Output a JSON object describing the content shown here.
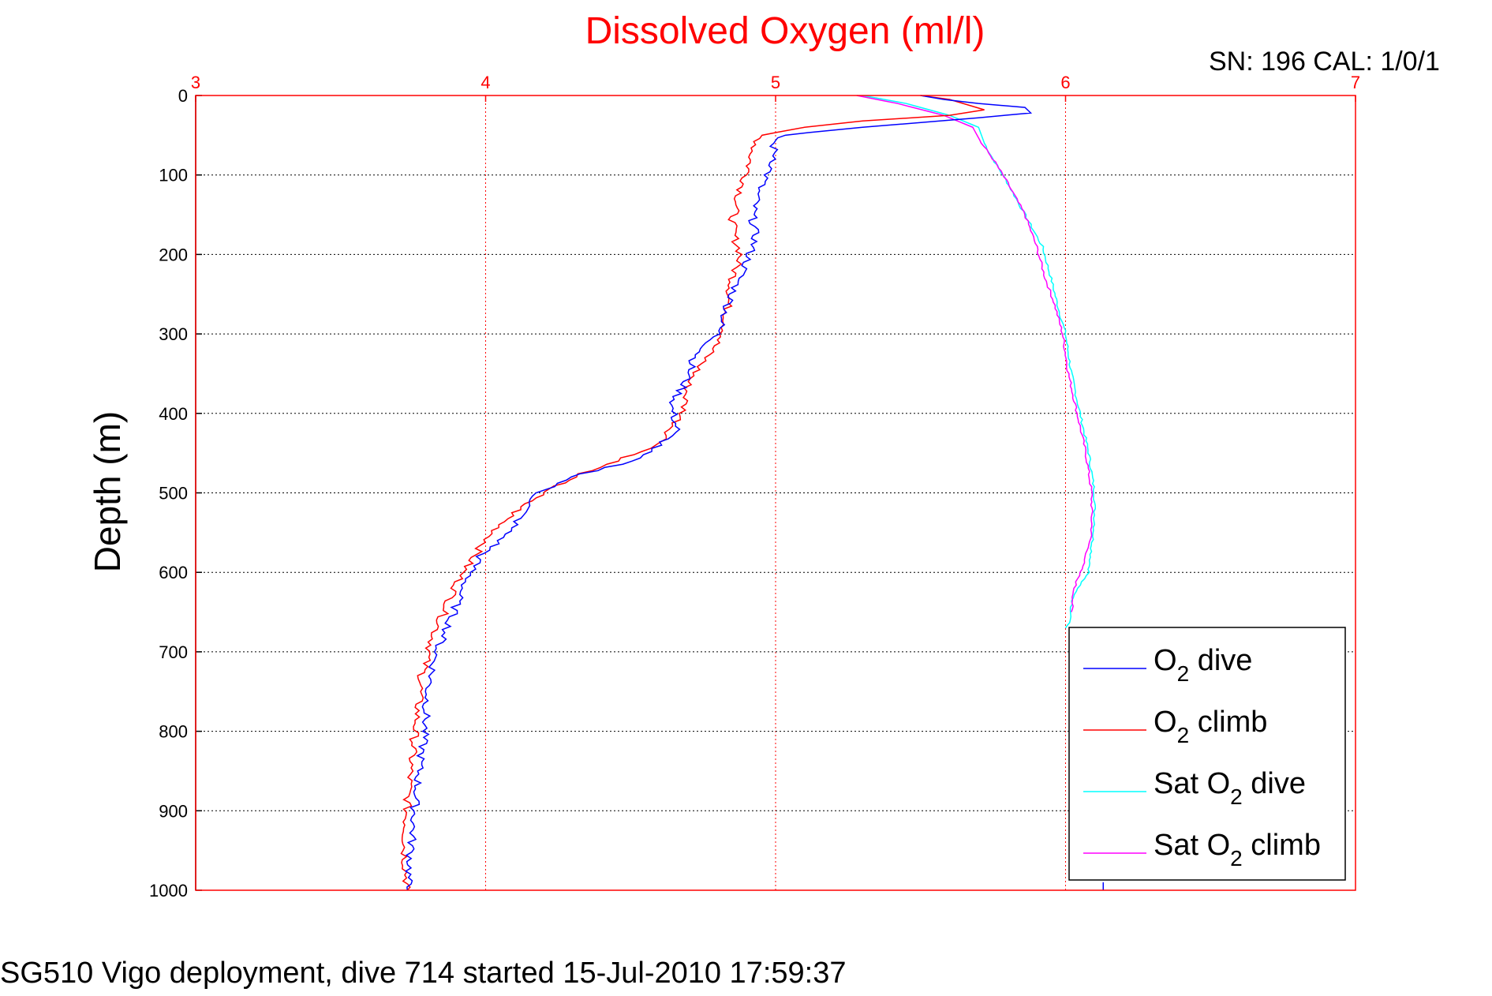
{
  "chart_data": {
    "type": "line",
    "title": "Dissolved Oxygen (ml/l)",
    "ylabel": "Depth (m)",
    "xlabel": "",
    "xlim": [
      3,
      7
    ],
    "ylim": [
      0,
      1000
    ],
    "y_inverted": true,
    "x_axis_position": "top",
    "grid": true,
    "legend_position": "bottom-right",
    "x_ticks": [
      3,
      4,
      5,
      6,
      7
    ],
    "y_ticks": [
      0,
      100,
      200,
      300,
      400,
      500,
      600,
      700,
      800,
      900,
      1000
    ],
    "series": [
      {
        "name": "O2 dive",
        "legend": {
          "prefix": "O",
          "sub": "2",
          "suffix": " dive"
        },
        "color": "#0000ff",
        "x": [
          5.5,
          5.58,
          5.7,
          5.86,
          5.88,
          5.7,
          5.3,
          5.02,
          4.99,
          5.0,
          4.97,
          4.94,
          4.92,
          4.93,
          4.9,
          4.85,
          4.8,
          4.72,
          4.69,
          4.64,
          4.66,
          4.6,
          4.5,
          4.3,
          4.18,
          4.1,
          4.05,
          3.98,
          3.92,
          3.88,
          3.83,
          3.8,
          3.79,
          3.77,
          3.76,
          3.75,
          3.74,
          3.73
        ],
        "y": [
          0,
          5,
          10,
          15,
          22,
          28,
          40,
          50,
          60,
          80,
          100,
          120,
          150,
          180,
          210,
          250,
          300,
          330,
          360,
          390,
          420,
          440,
          460,
          480,
          500,
          540,
          560,
          580,
          620,
          660,
          700,
          750,
          800,
          850,
          880,
          920,
          960,
          1000
        ]
      },
      {
        "name": "O2 climb",
        "legend": {
          "prefix": "O",
          "sub": "2",
          "suffix": " climb"
        },
        "color": "#ff0000",
        "x": [
          5.5,
          5.6,
          5.72,
          5.6,
          5.3,
          5.1,
          4.95,
          4.92,
          4.9,
          4.87,
          4.85,
          4.86,
          4.88,
          4.86,
          4.84,
          4.83,
          4.82,
          4.76,
          4.7,
          4.68,
          4.6,
          4.45,
          4.3,
          4.15,
          4.05,
          3.98,
          3.92,
          3.87,
          3.82,
          3.78,
          3.76,
          3.74,
          3.73,
          3.72,
          3.73
        ],
        "y": [
          0,
          5,
          18,
          25,
          32,
          40,
          50,
          70,
          100,
          130,
          160,
          180,
          200,
          220,
          250,
          280,
          300,
          330,
          360,
          400,
          440,
          460,
          480,
          510,
          540,
          570,
          600,
          640,
          680,
          730,
          790,
          850,
          890,
          950,
          1000
        ]
      },
      {
        "name": "Sat O2 dive",
        "legend": {
          "prefix": "Sat O",
          "sub": "2",
          "suffix": " dive"
        },
        "color": "#00ffff",
        "x": [
          5.3,
          5.45,
          5.6,
          5.7,
          5.72,
          5.75,
          5.8,
          5.86,
          5.92,
          5.95,
          5.97,
          6.0,
          6.02,
          6.05,
          6.08,
          6.1,
          6.1,
          6.09,
          6.08,
          6.04,
          6.02,
          6.02,
          6.0
        ],
        "y": [
          0,
          10,
          25,
          40,
          60,
          80,
          110,
          150,
          190,
          230,
          260,
          300,
          350,
          400,
          450,
          500,
          540,
          570,
          600,
          620,
          640,
          660,
          670
        ]
      },
      {
        "name": "Sat O2 climb",
        "legend": {
          "prefix": "Sat O",
          "sub": "2",
          "suffix": " climb"
        },
        "color": "#ff00ff",
        "x": [
          5.28,
          5.42,
          5.58,
          5.68,
          5.71,
          5.75,
          5.8,
          5.86,
          5.9,
          5.93,
          5.96,
          5.99,
          6.01,
          6.04,
          6.07,
          6.09,
          6.09,
          6.07,
          6.05,
          6.03,
          6.02
        ],
        "y": [
          0,
          10,
          25,
          40,
          60,
          80,
          110,
          150,
          190,
          230,
          260,
          300,
          350,
          400,
          450,
          500,
          550,
          580,
          600,
          620,
          650
        ]
      }
    ],
    "extra_segment": {
      "color": "#0000ff",
      "x": [
        6.13,
        6.13
      ],
      "y": [
        990,
        1000
      ]
    }
  },
  "annotations": {
    "serial": "SN: 196  CAL: 1/0/1",
    "caption": "SG510 Vigo deployment, dive 714 started 15-Jul-2010 17:59:37"
  }
}
